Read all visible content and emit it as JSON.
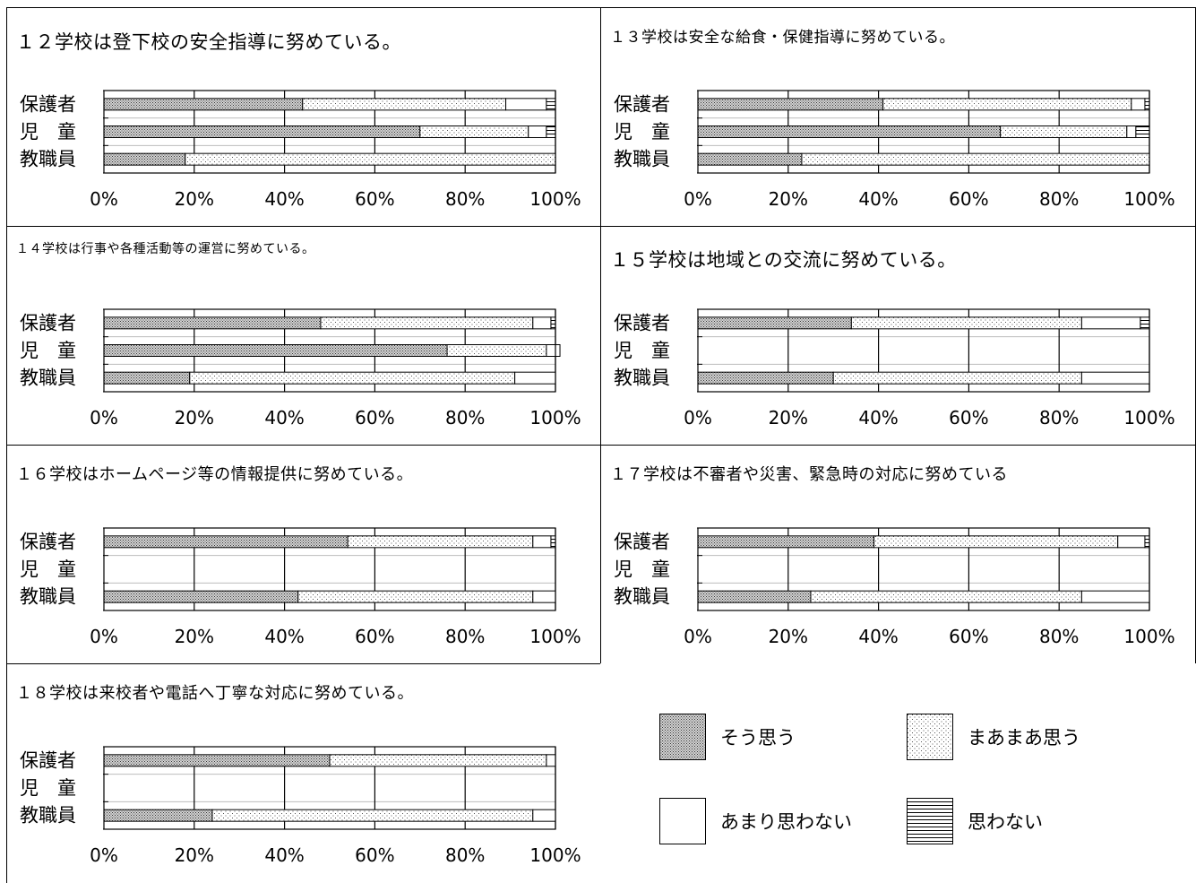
{
  "legend": [
    {
      "key": "so",
      "label": "そう思う"
    },
    {
      "key": "maa",
      "label": "まあまあ思う"
    },
    {
      "key": "amari",
      "label": "あまり思わない"
    },
    {
      "key": "omowanai",
      "label": "思わない"
    }
  ],
  "chart_data": [
    {
      "type": "bar",
      "orientation": "horizontal",
      "stacked": true,
      "title": "１２学校は登下校の安全指導に努めている。",
      "categories": [
        "保護者",
        "児　童",
        "教職員"
      ],
      "series": [
        {
          "name": "そう思う",
          "values": [
            44,
            70,
            18
          ]
        },
        {
          "name": "まあまあ思う",
          "values": [
            45,
            24,
            82
          ]
        },
        {
          "name": "あまり思わない",
          "values": [
            9,
            4,
            0
          ]
        },
        {
          "name": "思わない",
          "values": [
            2,
            2,
            0
          ]
        }
      ],
      "xticks": [
        "0%",
        "20%",
        "40%",
        "60%",
        "80%",
        "100%"
      ],
      "xlim": [
        0,
        100
      ]
    },
    {
      "type": "bar",
      "orientation": "horizontal",
      "stacked": true,
      "title": "１３学校は安全な給食・保健指導に努めている。",
      "categories": [
        "保護者",
        "児　童",
        "教職員"
      ],
      "series": [
        {
          "name": "そう思う",
          "values": [
            41,
            67,
            23
          ]
        },
        {
          "name": "まあまあ思う",
          "values": [
            55,
            28,
            77
          ]
        },
        {
          "name": "あまり思わない",
          "values": [
            3,
            2,
            0
          ]
        },
        {
          "name": "思わない",
          "values": [
            1,
            3,
            0
          ]
        }
      ],
      "xticks": [
        "0%",
        "20%",
        "40%",
        "60%",
        "80%",
        "100%"
      ],
      "xlim": [
        0,
        100
      ]
    },
    {
      "type": "bar",
      "orientation": "horizontal",
      "stacked": true,
      "title": "１４学校は行事や各種活動等の運営に努めている。",
      "categories": [
        "保護者",
        "児　童",
        "教職員"
      ],
      "series": [
        {
          "name": "そう思う",
          "values": [
            48,
            76,
            19
          ]
        },
        {
          "name": "まあまあ思う",
          "values": [
            47,
            22,
            72
          ]
        },
        {
          "name": "あまり思わない",
          "values": [
            4,
            3,
            9
          ]
        },
        {
          "name": "思わない",
          "values": [
            1,
            0,
            0
          ]
        }
      ],
      "xticks": [
        "0%",
        "20%",
        "40%",
        "60%",
        "80%",
        "100%"
      ],
      "xlim": [
        0,
        100
      ]
    },
    {
      "type": "bar",
      "orientation": "horizontal",
      "stacked": true,
      "title": "１５学校は地域との交流に努めている。",
      "categories": [
        "保護者",
        "児　童",
        "教職員"
      ],
      "series": [
        {
          "name": "そう思う",
          "values": [
            34,
            0,
            30
          ]
        },
        {
          "name": "まあまあ思う",
          "values": [
            51,
            0,
            55
          ]
        },
        {
          "name": "あまり思わない",
          "values": [
            13,
            0,
            15
          ]
        },
        {
          "name": "思わない",
          "values": [
            2,
            0,
            0
          ]
        }
      ],
      "xticks": [
        "0%",
        "20%",
        "40%",
        "60%",
        "80%",
        "100%"
      ],
      "xlim": [
        0,
        100
      ]
    },
    {
      "type": "bar",
      "orientation": "horizontal",
      "stacked": true,
      "title": "１６学校はホームページ等の情報提供に努めている。",
      "categories": [
        "保護者",
        "児　童",
        "教職員"
      ],
      "series": [
        {
          "name": "そう思う",
          "values": [
            54,
            0,
            43
          ]
        },
        {
          "name": "まあまあ思う",
          "values": [
            41,
            0,
            52
          ]
        },
        {
          "name": "あまり思わない",
          "values": [
            4,
            0,
            5
          ]
        },
        {
          "name": "思わない",
          "values": [
            1,
            0,
            0
          ]
        }
      ],
      "xticks": [
        "0%",
        "20%",
        "40%",
        "60%",
        "80%",
        "100%"
      ],
      "xlim": [
        0,
        100
      ]
    },
    {
      "type": "bar",
      "orientation": "horizontal",
      "stacked": true,
      "title": "１７学校は不審者や災害、緊急時の対応に努めている",
      "categories": [
        "保護者",
        "児　童",
        "教職員"
      ],
      "series": [
        {
          "name": "そう思う",
          "values": [
            39,
            0,
            25
          ]
        },
        {
          "name": "まあまあ思う",
          "values": [
            54,
            0,
            60
          ]
        },
        {
          "name": "あまり思わない",
          "values": [
            6,
            0,
            15
          ]
        },
        {
          "name": "思わない",
          "values": [
            1,
            0,
            0
          ]
        }
      ],
      "xticks": [
        "0%",
        "20%",
        "40%",
        "60%",
        "80%",
        "100%"
      ],
      "xlim": [
        0,
        100
      ]
    },
    {
      "type": "bar",
      "orientation": "horizontal",
      "stacked": true,
      "title": "１８学校は来校者や電話へ丁寧な対応に努めている。",
      "categories": [
        "保護者",
        "児　童",
        "教職員"
      ],
      "series": [
        {
          "name": "そう思う",
          "values": [
            50,
            0,
            24
          ]
        },
        {
          "name": "まあまあ思う",
          "values": [
            48,
            0,
            71
          ]
        },
        {
          "name": "あまり思わない",
          "values": [
            2,
            0,
            5
          ]
        },
        {
          "name": "思わない",
          "values": [
            0,
            0,
            0
          ]
        }
      ],
      "xticks": [
        "0%",
        "20%",
        "40%",
        "60%",
        "80%",
        "100%"
      ],
      "xlim": [
        0,
        100
      ]
    }
  ]
}
